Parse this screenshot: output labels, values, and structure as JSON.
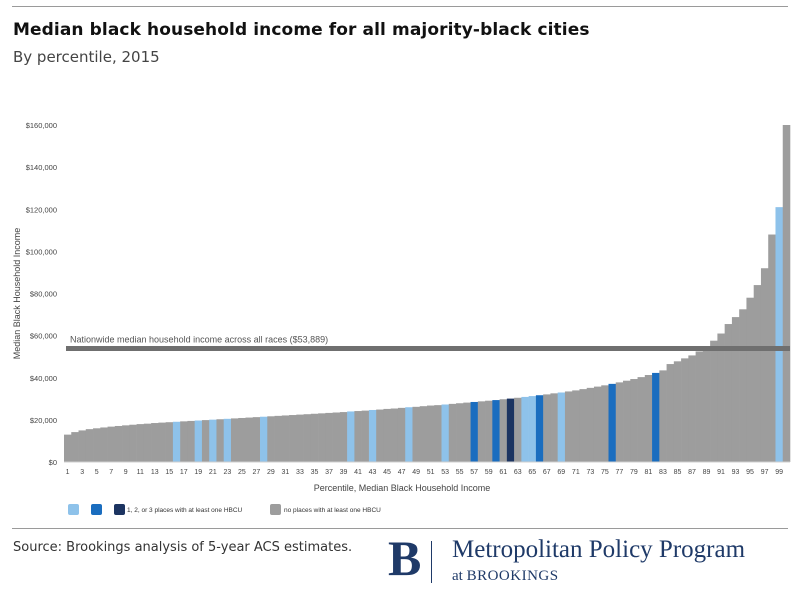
{
  "header": {
    "title": "Median black household income for all majority-black cities",
    "subtitle": "By percentile, 2015"
  },
  "footer": {
    "source": "Source: Brookings analysis of 5-year ACS estimates.",
    "logo_letter": "B",
    "logo_name": "Metropolitan Policy Program",
    "logo_at": "at",
    "logo_org": "BROOKINGS"
  },
  "chart_data": {
    "type": "bar",
    "ylabel": "Median Black Household Income",
    "xlabel": "Percentile, Median Black Household Income",
    "ylim": [
      0,
      160000
    ],
    "yticks": [
      0,
      20000,
      40000,
      60000,
      80000,
      100000,
      120000,
      140000,
      160000
    ],
    "ytick_labels": [
      "$0",
      "$20,000",
      "$40,000",
      "$60,000",
      "$80,000",
      "$100,000",
      "$120,000",
      "$140,000",
      "$160,000"
    ],
    "x_tick_labels": [
      "1",
      "3",
      "5",
      "7",
      "9",
      "11",
      "13",
      "15",
      "17",
      "19",
      "21",
      "23",
      "25",
      "27",
      "29",
      "31",
      "33",
      "35",
      "37",
      "39",
      "41",
      "43",
      "45",
      "47",
      "49",
      "51",
      "53",
      "55",
      "57",
      "59",
      "61",
      "63",
      "65",
      "67",
      "69",
      "71",
      "73",
      "75",
      "77",
      "79",
      "81",
      "83",
      "85",
      "87",
      "89",
      "91",
      "93",
      "95",
      "97",
      "99"
    ],
    "grid": false,
    "reference_line": {
      "value": 53889,
      "label": "Nationwide median household income across all races ($53,889)",
      "color": "#6f6f6f"
    },
    "colors": {
      "0": "#9d9d9d",
      "1": "#8ec2ea",
      "2": "#1a6dbf",
      "3": "#1c3461"
    },
    "legend": {
      "placement": "bottom",
      "hbcu_label": "1, 2, or 3 places with at least one HBCU",
      "hbcu_counts": [
        1,
        2,
        3
      ],
      "none_label": "no places with at least one HBCU"
    },
    "percentiles": [
      1,
      2,
      3,
      4,
      5,
      6,
      7,
      8,
      9,
      10,
      11,
      12,
      13,
      14,
      15,
      16,
      17,
      18,
      19,
      20,
      21,
      22,
      23,
      24,
      25,
      26,
      27,
      28,
      29,
      30,
      31,
      32,
      33,
      34,
      35,
      36,
      37,
      38,
      39,
      40,
      41,
      42,
      43,
      44,
      45,
      46,
      47,
      48,
      49,
      50,
      51,
      52,
      53,
      54,
      55,
      56,
      57,
      58,
      59,
      60,
      61,
      62,
      63,
      64,
      65,
      66,
      67,
      68,
      69,
      70,
      71,
      72,
      73,
      74,
      75,
      76,
      77,
      78,
      79,
      80,
      81,
      82,
      83,
      84,
      85,
      86,
      87,
      88,
      89,
      90,
      91,
      92,
      93,
      94,
      95,
      96,
      97,
      98,
      99,
      100
    ],
    "values": [
      13000,
      14200,
      15000,
      15600,
      16000,
      16400,
      16800,
      17100,
      17400,
      17700,
      18000,
      18200,
      18500,
      18700,
      18900,
      19100,
      19300,
      19500,
      19700,
      19900,
      20100,
      20300,
      20500,
      20700,
      20900,
      21100,
      21300,
      21500,
      21700,
      21900,
      22100,
      22300,
      22500,
      22700,
      22900,
      23100,
      23300,
      23500,
      23700,
      24000,
      24200,
      24400,
      24700,
      24900,
      25200,
      25400,
      25700,
      26000,
      26200,
      26500,
      26800,
      27000,
      27300,
      27600,
      27900,
      28200,
      28500,
      28800,
      29100,
      29400,
      29800,
      30100,
      30500,
      30900,
      31300,
      31700,
      32100,
      32600,
      33000,
      33500,
      34000,
      34600,
      35200,
      35800,
      36400,
      37100,
      37800,
      38600,
      39400,
      40300,
      41300,
      42300,
      43500,
      46500,
      47800,
      49200,
      50600,
      52500,
      54800,
      57600,
      61000,
      65500,
      68800,
      72500,
      78000,
      84000,
      92000,
      108000,
      121000,
      160000
    ],
    "hbcu_count": [
      0,
      0,
      0,
      0,
      0,
      0,
      0,
      0,
      0,
      0,
      0,
      0,
      0,
      0,
      0,
      1,
      0,
      0,
      1,
      0,
      1,
      0,
      1,
      0,
      0,
      0,
      0,
      1,
      0,
      0,
      0,
      0,
      0,
      0,
      0,
      0,
      0,
      0,
      0,
      1,
      0,
      0,
      1,
      0,
      0,
      0,
      0,
      1,
      0,
      0,
      0,
      0,
      1,
      0,
      0,
      0,
      2,
      0,
      0,
      2,
      0,
      3,
      0,
      1,
      1,
      2,
      0,
      0,
      1,
      0,
      0,
      0,
      0,
      0,
      0,
      2,
      0,
      0,
      0,
      0,
      0,
      2,
      0,
      0,
      0,
      0,
      0,
      0,
      0,
      0,
      0,
      0,
      0,
      0,
      0,
      0,
      0,
      0,
      1,
      0
    ]
  }
}
